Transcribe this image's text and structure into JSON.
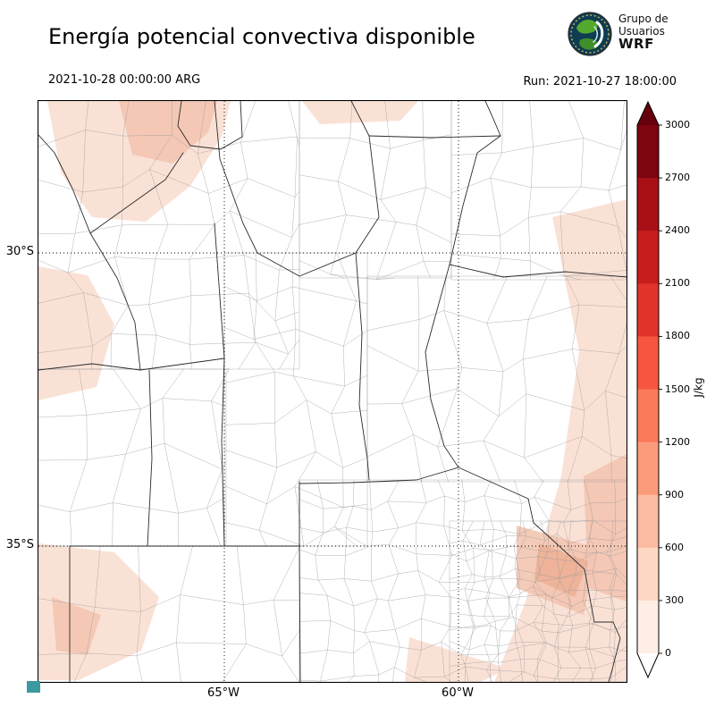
{
  "header": {
    "title": "Energía potencial convectiva disponible",
    "valid_time": "2021-10-28 00:00:00 ARG",
    "run_time": "Run: 2021-10-27 18:00:00",
    "logo": {
      "line1": "Grupo de",
      "line2": "Usuarios",
      "line3": "WRF"
    }
  },
  "map": {
    "lat_ticks": [
      {
        "label": "30°S"
      },
      {
        "label": "35°S"
      }
    ],
    "lon_ticks": [
      {
        "label": "65°W"
      },
      {
        "label": "60°W"
      }
    ]
  },
  "colorbar": {
    "unit": "J/kg",
    "tick_labels": [
      "3000",
      "2700",
      "2400",
      "2100",
      "1800",
      "1500",
      "1200",
      "900",
      "600",
      "300",
      "0"
    ],
    "segment_colors_top_to_bottom": [
      "#7d0510",
      "#a81016",
      "#c91d1d",
      "#e1332a",
      "#f6563e",
      "#fb7a5a",
      "#fc9b7b",
      "#fcbba1",
      "#fdd8c3",
      "#feeee5"
    ],
    "over_color": "#67000d",
    "under_color": "#ffffff"
  },
  "chart_data": {
    "type": "heatmap",
    "title": "Energía potencial convectiva disponible",
    "variable": "CAPE",
    "unit": "J/kg",
    "levels": [
      0,
      300,
      600,
      900,
      1200,
      1500,
      1800,
      2100,
      2400,
      2700,
      3000
    ],
    "valid_time": "2021-10-28 00:00:00 ARG",
    "run_label": "Run: 2021-10-27 18:00:00",
    "lat_ticks": [
      "30°S",
      "35°S"
    ],
    "lon_ticks": [
      "65°W",
      "60°W"
    ],
    "legend_position": "right vertical colorbar with pointed over/under ends",
    "shaded_regions_visible": [
      "northwest corner: light shading ~0-600 J/kg",
      "west edge mid and lower: light shading ~0-300 J/kg",
      "eastern edge band: light shading ~0-600 J/kg",
      "southeast Buenos Aires coastal area: ~300-900 J/kg",
      "bottom center-right: light shading ~0-300 J/kg",
      "rest of domain: near 0 (white)"
    ]
  }
}
